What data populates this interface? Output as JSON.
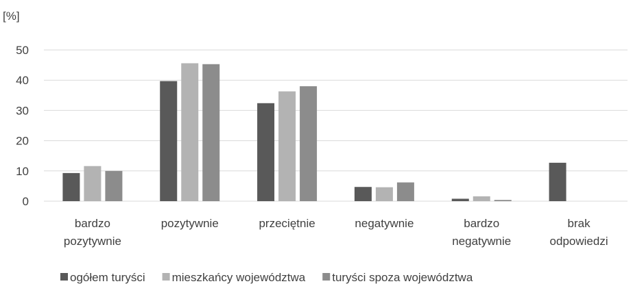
{
  "chart_data": {
    "type": "bar",
    "ylabel": "[%]",
    "ylim": [
      0,
      50
    ],
    "yticks": [
      0,
      10,
      20,
      30,
      40,
      50
    ],
    "grid": true,
    "legend_position": "bottom",
    "categories": [
      [
        "bardzo",
        "pozytywnie"
      ],
      [
        "pozytywnie"
      ],
      [
        "przeciętnie"
      ],
      [
        "negatywnie"
      ],
      [
        "bardzo",
        "negatywnie"
      ],
      [
        "brak",
        "odpowiedzi"
      ]
    ],
    "series": [
      {
        "name": "ogółem turyści",
        "color": "#595959",
        "values": [
          9.3,
          39.7,
          32.4,
          4.7,
          0.8,
          12.7
        ]
      },
      {
        "name": "mieszkańcy województwa",
        "color": "#b3b3b3",
        "values": [
          11.6,
          45.6,
          36.3,
          4.6,
          1.6,
          0
        ]
      },
      {
        "name": "turyści spoza województwa",
        "color": "#8c8c8c",
        "values": [
          10.0,
          45.3,
          38.0,
          6.2,
          0.4,
          0
        ]
      }
    ]
  }
}
